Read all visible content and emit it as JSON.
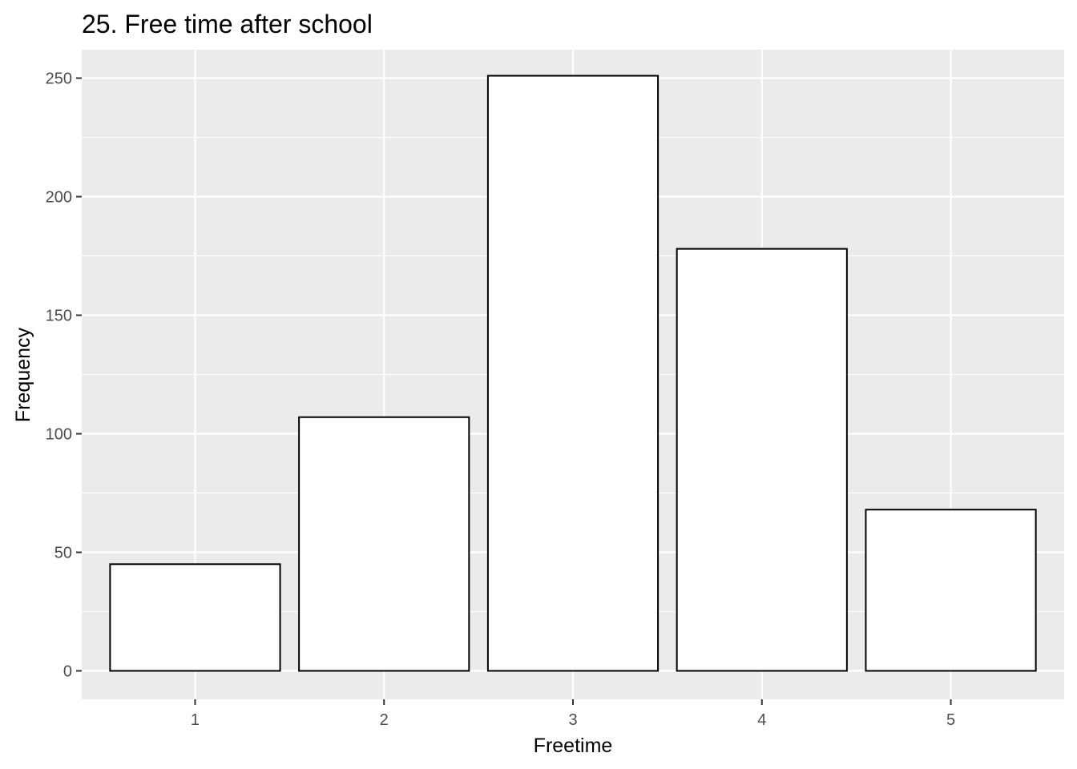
{
  "chart_data": {
    "type": "bar",
    "title": "25. Free time after school",
    "xlabel": "Freetime",
    "ylabel": "Frequency",
    "categories": [
      "1",
      "2",
      "3",
      "4",
      "5"
    ],
    "values": [
      45,
      107,
      251,
      178,
      68
    ],
    "ylim": [
      -12,
      262
    ],
    "yticks": [
      0,
      50,
      100,
      150,
      200,
      250
    ],
    "grid": true,
    "legend": "none",
    "colors": {
      "panel": "#ebebeb",
      "bar_fill": "#ffffff",
      "bar_stroke": "#000000",
      "tick_label": "#4d4d4d"
    }
  }
}
